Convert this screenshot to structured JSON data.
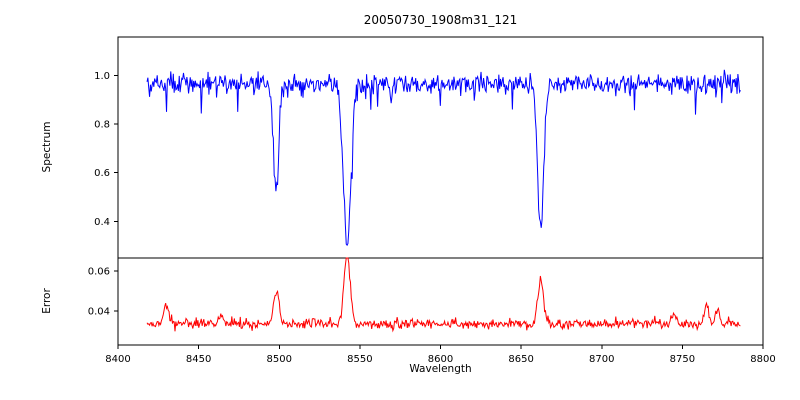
{
  "figure": {
    "background": "#ffffff"
  },
  "chart_data": {
    "type": "line",
    "title": "20050730_1908m31_121",
    "xlabel": "Wavelength",
    "xlim": [
      8400,
      8800
    ],
    "xticks": [
      8400,
      8450,
      8500,
      8550,
      8600,
      8650,
      8700,
      8750,
      8800
    ],
    "x_data_range": [
      8418,
      8786
    ],
    "grid": false,
    "legend": "none",
    "seed": 42,
    "n_points": 700,
    "subplots": [
      {
        "name": "spectrum",
        "ylabel": "Spectrum",
        "color": "#0000ff",
        "ylim": [
          0.25,
          1.157
        ],
        "yticks": [
          {
            "v": 0.4,
            "label": "0.4"
          },
          {
            "v": 0.6,
            "label": "0.6"
          },
          {
            "v": 0.8,
            "label": "0.8"
          },
          {
            "v": 1.0,
            "label": "1.0"
          }
        ],
        "continuum": 0.965,
        "noise_sigma": 0.021,
        "dip_prob": 0.05,
        "dip_max": 0.14,
        "absorption_lines": [
          {
            "center": 8498.0,
            "depth": 0.47,
            "width": 1.6
          },
          {
            "center": 8542.1,
            "depth": 0.67,
            "width": 2.3
          },
          {
            "center": 8662.1,
            "depth": 0.6,
            "width": 1.9
          }
        ]
      },
      {
        "name": "error",
        "ylabel": "Error",
        "color": "#ff0000",
        "ylim": [
          0.023,
          0.0665
        ],
        "yticks": [
          {
            "v": 0.04,
            "label": "0.04"
          },
          {
            "v": 0.06,
            "label": "0.06"
          }
        ],
        "baseline": 0.0335,
        "noise_sigma": 0.0012,
        "spike_prob": 0.04,
        "spike_max": 0.004,
        "peaks": [
          {
            "center": 8430.0,
            "height": 0.009,
            "width": 1.5
          },
          {
            "center": 8464.0,
            "height": 0.005,
            "width": 1.5
          },
          {
            "center": 8498.0,
            "height": 0.016,
            "width": 1.7
          },
          {
            "center": 8542.1,
            "height": 0.034,
            "width": 2.0
          },
          {
            "center": 8662.1,
            "height": 0.022,
            "width": 1.8
          },
          {
            "center": 8745.0,
            "height": 0.004,
            "width": 1.5
          },
          {
            "center": 8765.0,
            "height": 0.009,
            "width": 1.3
          },
          {
            "center": 8772.0,
            "height": 0.008,
            "width": 1.3
          }
        ]
      }
    ]
  }
}
